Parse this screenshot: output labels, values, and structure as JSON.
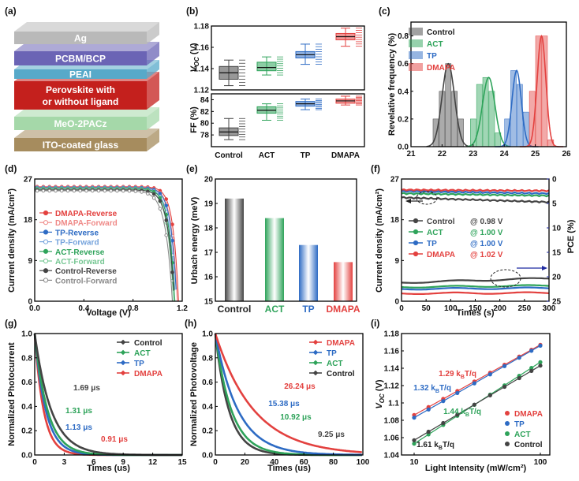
{
  "panel_labels": [
    "(a)",
    "(b)",
    "(c)",
    "(d)",
    "(e)",
    "(f)",
    "(g)",
    "(h)",
    "(i)"
  ],
  "colors": {
    "Control": "#444444",
    "ACT": "#2ea35a",
    "TP": "#2d6bc4",
    "DMAPA": "#e3413f",
    "Control_light": "#8a8a8a",
    "ACT_light": "#76c793",
    "TP_light": "#75a3dc",
    "DMAPA_light": "#ef8a88",
    "pce_axis": "#1f2aa0"
  },
  "stack": {
    "layers": [
      {
        "name": "Ag",
        "color": "#b9b9b9"
      },
      {
        "name": "PCBM/BCP",
        "color": "#6b64b5"
      },
      {
        "name": "PEAI",
        "color": "#57a9c9"
      },
      {
        "name": "Perovskite with or without ligand",
        "line1": "Perovskite with",
        "line2": "or without ligand",
        "color": "#c4201d"
      },
      {
        "name": "MeO-2PACz",
        "color": "#a5d8a9"
      },
      {
        "name": "ITO-coated glass",
        "color": "#a68c5e"
      }
    ]
  },
  "chart_data": [
    {
      "panel": "b-top",
      "type": "box",
      "ylabel_main": "V",
      "ylabel_sub": "OC",
      "ylabel_unit": "(V)",
      "categories": [
        "Control",
        "ACT",
        "TP",
        "DMAPA"
      ],
      "ylim": [
        1.12,
        1.18
      ],
      "yticks": [
        "1.12",
        "1.14",
        "1.16",
        "1.18"
      ],
      "series": [
        {
          "name": "Control",
          "q1": 1.13,
          "median": 1.136,
          "q3": 1.142,
          "min": 1.124,
          "max": 1.148
        },
        {
          "name": "ACT",
          "q1": 1.138,
          "median": 1.141,
          "q3": 1.146,
          "min": 1.134,
          "max": 1.151
        },
        {
          "name": "TP",
          "q1": 1.15,
          "median": 1.153,
          "q3": 1.156,
          "min": 1.144,
          "max": 1.163
        },
        {
          "name": "DMAPA",
          "q1": 1.167,
          "median": 1.17,
          "q3": 1.173,
          "min": 1.161,
          "max": 1.178
        }
      ]
    },
    {
      "panel": "b-bottom",
      "type": "box",
      "ylabel": "FF (%)",
      "categories": [
        "Control",
        "ACT",
        "TP",
        "DMAPA"
      ],
      "ylim": [
        76,
        85
      ],
      "yticks": [
        "78",
        "80",
        "82",
        "84"
      ],
      "series": [
        {
          "name": "Control",
          "q1": 77.9,
          "median": 78.5,
          "q3": 79.2,
          "min": 77.2,
          "max": 80.8
        },
        {
          "name": "ACT",
          "q1": 81.7,
          "median": 82.2,
          "q3": 82.8,
          "min": 80.5,
          "max": 83.3
        },
        {
          "name": "TP",
          "q1": 82.9,
          "median": 83.3,
          "q3": 83.7,
          "min": 82.3,
          "max": 84.1
        },
        {
          "name": "DMAPA",
          "q1": 83.4,
          "median": 83.8,
          "q3": 84.1,
          "min": 83.1,
          "max": 84.6
        }
      ]
    },
    {
      "panel": "c",
      "type": "bar",
      "ylabel": "Revelative frequency (%)",
      "xlim": [
        21,
        26
      ],
      "ylim": [
        0,
        0.9
      ],
      "xticks": [
        "21",
        "22",
        "23",
        "24",
        "25",
        "26"
      ],
      "yticks": [
        "0.0",
        "0.2",
        "0.4",
        "0.6",
        "0.8"
      ],
      "series": [
        {
          "name": "Control",
          "x": [
            21.8,
            22.0,
            22.2,
            22.4,
            22.6
          ],
          "values": [
            0.2,
            0.4,
            0.6,
            0.4,
            0.2
          ],
          "center": 22.2,
          "peak": 0.6,
          "width": 0.2
        },
        {
          "name": "ACT",
          "x": [
            23.0,
            23.2,
            23.4,
            23.6,
            23.8
          ],
          "values": [
            0.2,
            0.45,
            0.5,
            0.4,
            0.1
          ],
          "center": 23.5,
          "peak": 0.5,
          "width": 0.2
        },
        {
          "name": "TP",
          "x": [
            24.1,
            24.3,
            24.5,
            24.7
          ],
          "values": [
            0.2,
            0.55,
            0.45,
            0.25
          ],
          "center": 24.4,
          "peak": 0.55,
          "width": 0.15
        },
        {
          "name": "DMAPA",
          "x": [
            24.9,
            25.1,
            25.3,
            25.5
          ],
          "values": [
            0.4,
            0.8,
            0.8,
            0.05
          ],
          "center": 25.2,
          "peak": 0.8,
          "width": 0.14
        }
      ]
    },
    {
      "panel": "d",
      "type": "line",
      "xlabel": "Voltage (V)",
      "ylabel": "Current density (mA/cm²)",
      "xlim": [
        0,
        1.2
      ],
      "ylim": [
        0,
        27
      ],
      "xticks": [
        "0.0",
        "0.4",
        "0.8",
        "1.2"
      ],
      "yticks": [
        "0",
        "9",
        "18",
        "27"
      ],
      "series": [
        {
          "name": "DMAPA-Reverse",
          "jsc": 25.3,
          "voc": 1.17,
          "k": 0.045,
          "color_key": "DMAPA",
          "filled": true
        },
        {
          "name": "DMAPA-Forward",
          "jsc": 25.2,
          "voc": 1.16,
          "k": 0.047,
          "color_key": "DMAPA_light",
          "filled": false
        },
        {
          "name": "TP-Reverse",
          "jsc": 25.1,
          "voc": 1.155,
          "k": 0.046,
          "color_key": "TP",
          "filled": true
        },
        {
          "name": "TP-Forward",
          "jsc": 25.0,
          "voc": 1.145,
          "k": 0.048,
          "color_key": "TP_light",
          "filled": false
        },
        {
          "name": "ACT-Reverse",
          "jsc": 24.9,
          "voc": 1.14,
          "k": 0.048,
          "color_key": "ACT",
          "filled": true
        },
        {
          "name": "ACT-Forward",
          "jsc": 24.8,
          "voc": 1.13,
          "k": 0.05,
          "color_key": "ACT_light",
          "filled": false
        },
        {
          "name": "Control-Reverse",
          "jsc": 24.6,
          "voc": 1.135,
          "k": 0.05,
          "color_key": "Control",
          "filled": true
        },
        {
          "name": "Control-Forward",
          "jsc": 24.4,
          "voc": 1.12,
          "k": 0.055,
          "color_key": "Control_light",
          "filled": false
        }
      ]
    },
    {
      "panel": "e",
      "type": "bar",
      "ylabel": "Urbach energy (meV)",
      "categories": [
        "Control",
        "ACT",
        "TP",
        "DMAPA"
      ],
      "values": [
        19.2,
        18.4,
        17.3,
        16.6
      ],
      "ylim": [
        15,
        20
      ],
      "yticks": [
        "15",
        "16",
        "17",
        "18",
        "19",
        "20"
      ]
    },
    {
      "panel": "f",
      "type": "line",
      "xlabel": "Times (s)",
      "ylabel": "Current density (mA/cm²)",
      "ylabel_right": "PCE (%)",
      "xlim": [
        0,
        300
      ],
      "ylim": [
        0,
        27
      ],
      "ylim_right": [
        25,
        0
      ],
      "xticks": [
        "0",
        "50",
        "100",
        "150",
        "200",
        "250",
        "300"
      ],
      "yticks": [
        "0",
        "9",
        "18",
        "27"
      ],
      "yticks_right": [
        "0",
        "5",
        "10",
        "15",
        "20",
        "25"
      ],
      "series": [
        {
          "name": "Control",
          "bias": "@ 0.98 V",
          "j_start": 22.9,
          "j_end": 21.9,
          "pce_start": 21.2,
          "pce_end": 20.3,
          "color_key": "Control"
        },
        {
          "name": "ACT",
          "bias": "@ 1.00 V",
          "j_start": 23.8,
          "j_end": 23.3,
          "pce_start": 22.1,
          "pce_end": 21.8,
          "color_key": "ACT"
        },
        {
          "name": "TP",
          "bias": "@ 1.00 V",
          "j_start": 24.3,
          "j_end": 23.8,
          "pce_start": 22.5,
          "pce_end": 22.3,
          "color_key": "TP"
        },
        {
          "name": "DMAPA",
          "bias": "@ 1.02 V",
          "j_start": 24.6,
          "j_end": 24.4,
          "pce_start": 23.4,
          "pce_end": 23.3,
          "color_key": "DMAPA"
        }
      ]
    },
    {
      "panel": "g",
      "type": "line",
      "xlabel": "Times (us)",
      "ylabel": "Normalized Photocurrent",
      "xlim": [
        0,
        15
      ],
      "ylim": [
        0,
        1.0
      ],
      "xticks": [
        "0",
        "3",
        "6",
        "9",
        "12",
        "15"
      ],
      "yticks": [
        "0.0",
        "0.2",
        "0.4",
        "0.6",
        "0.8",
        "1.0"
      ],
      "series": [
        {
          "name": "Control",
          "tau": 1.69,
          "tau_label": "1.69 μs",
          "color_key": "Control"
        },
        {
          "name": "ACT",
          "tau": 1.31,
          "tau_label": "1.31 μs",
          "color_key": "ACT"
        },
        {
          "name": "TP",
          "tau": 1.13,
          "tau_label": "1.13 μs",
          "color_key": "TP"
        },
        {
          "name": "DMAPA",
          "tau": 0.91,
          "tau_label": "0.91 μs",
          "color_key": "DMAPA"
        }
      ]
    },
    {
      "panel": "h",
      "type": "line",
      "xlabel": "Times (us)",
      "ylabel": "Normalized Photovoltage",
      "xlim": [
        0,
        100
      ],
      "ylim": [
        0,
        1.0
      ],
      "xticks": [
        "0",
        "20",
        "40",
        "60",
        "80",
        "100"
      ],
      "yticks": [
        "0.0",
        "0.2",
        "0.4",
        "0.6",
        "0.8",
        "1.0"
      ],
      "series": [
        {
          "name": "DMAPA",
          "tau": 26.24,
          "tau_label": "26.24 μs",
          "color_key": "DMAPA"
        },
        {
          "name": "TP",
          "tau": 15.38,
          "tau_label": "15.38 μs",
          "color_key": "TP"
        },
        {
          "name": "ACT",
          "tau": 10.92,
          "tau_label": "10.92 μs",
          "color_key": "ACT"
        },
        {
          "name": "Control",
          "tau": 9.25,
          "tau_label": "9.25 μs",
          "color_key": "Control"
        }
      ]
    },
    {
      "panel": "i",
      "type": "scatter",
      "xlabel": "Light Intensity (mW/cm²)",
      "ylabel_main": "V",
      "ylabel_sub": "OC",
      "ylabel_unit": "(V)",
      "xscale": "log",
      "xlim": [
        10,
        100
      ],
      "ylim": [
        1.04,
        1.18
      ],
      "xticks": [
        "10",
        "100"
      ],
      "yticks": [
        "1.04",
        "1.06",
        "1.08",
        "1.10",
        "1.12",
        "1.14",
        "1.16",
        "1.18"
      ],
      "ytick_labels": [
        "1.04",
        "1.06",
        "1.08",
        "1.1",
        "1.12",
        "1.14",
        "1.16",
        "1.18"
      ],
      "series": [
        {
          "name": "DMAPA",
          "slope_label": "1.29 kBT/q",
          "slope_num": "1.29 k",
          "slope_sub": "B",
          "slope_tail": "T/q",
          "y10": 1.086,
          "y100": 1.167,
          "color_key": "DMAPA"
        },
        {
          "name": "TP",
          "slope_label": "1.32 kBT/q",
          "slope_num": "1.32 k",
          "slope_sub": "B",
          "slope_tail": "T/q",
          "y10": 1.083,
          "y100": 1.166,
          "color_key": "TP"
        },
        {
          "name": "ACT",
          "slope_label": "1.44 kBT/q",
          "slope_num": "1.44 k",
          "slope_sub": "B",
          "slope_tail": "T/q",
          "y10": 1.053,
          "y100": 1.147,
          "color_key": "ACT"
        },
        {
          "name": "Control",
          "slope_label": "1.61 kBT/q",
          "slope_num": "1.61 k",
          "slope_sub": "B",
          "slope_tail": "T/q",
          "y10": 1.057,
          "y100": 1.143,
          "color_key": "Control"
        }
      ]
    }
  ]
}
